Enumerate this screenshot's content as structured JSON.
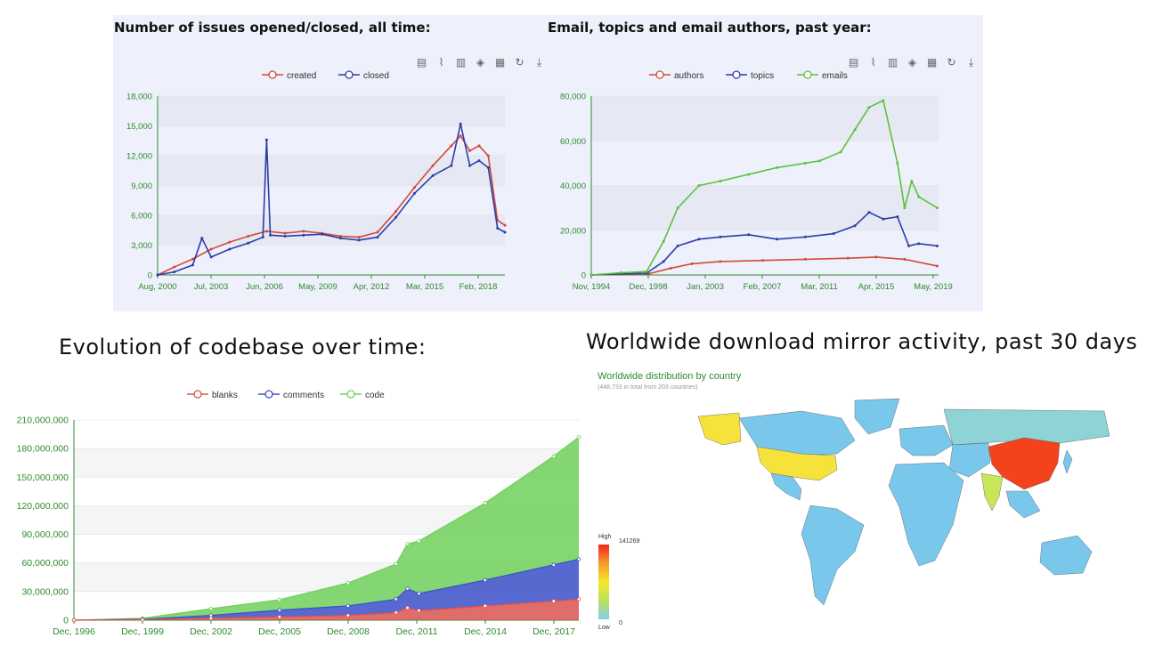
{
  "headings": {
    "issues": "Number of issues opened/closed, all time:",
    "email": "Email, topics and email authors, past year:",
    "codebase": "Evolution of codebase over time:",
    "mirror": "Worldwide download mirror activity, past 30 days"
  },
  "toolbar_icons": [
    "data-view-icon",
    "line-switch-icon",
    "bar-switch-icon",
    "stack-icon",
    "tiled-icon",
    "restore-icon",
    "download-icon"
  ],
  "map": {
    "title": "Worldwide distribution by country",
    "subtitle": "(448,733 in total from 203 countries)",
    "scale_high": "High",
    "scale_low": "Low",
    "scale_max": "141269",
    "scale_min": "0"
  },
  "chart_data": [
    {
      "type": "line",
      "title": "Number of issues opened/closed, all time:",
      "x_ticks": [
        "Aug, 2000",
        "Jul, 2003",
        "Jun, 2006",
        "May, 2009",
        "Apr, 2012",
        "Mar, 2015",
        "Feb, 2018"
      ],
      "ylim": [
        0,
        18000
      ],
      "y_ticks": [
        "0",
        "3,000",
        "6,000",
        "9,000",
        "12,000",
        "15,000",
        "18,000"
      ],
      "legend": "top-center",
      "colors": {
        "created": "#d14a3a",
        "closed": "#2b3ea8"
      },
      "series": [
        {
          "name": "created",
          "x": [
            2000.6,
            2001.5,
            2002.5,
            2003.5,
            2004.5,
            2005.5,
            2006.5,
            2007.5,
            2008.5,
            2009.5,
            2010.5,
            2011.5,
            2012.5,
            2013.5,
            2014.5,
            2015.5,
            2016.5,
            2017.0,
            2017.5,
            2018.0,
            2018.5,
            2019.0,
            2019.4
          ],
          "values": [
            0,
            800,
            1600,
            2600,
            3300,
            3900,
            4400,
            4200,
            4400,
            4200,
            3900,
            3800,
            4300,
            6400,
            8800,
            11000,
            13000,
            14000,
            12500,
            13000,
            12000,
            5500,
            5000
          ]
        },
        {
          "name": "closed",
          "x": [
            2000.6,
            2001.5,
            2002.5,
            2003.0,
            2003.5,
            2004.5,
            2005.5,
            2006.3,
            2006.5,
            2006.7,
            2007.5,
            2008.5,
            2009.5,
            2010.5,
            2011.5,
            2012.5,
            2013.5,
            2014.5,
            2015.5,
            2016.5,
            2017.0,
            2017.5,
            2018.0,
            2018.5,
            2019.0,
            2019.4
          ],
          "values": [
            0,
            300,
            1000,
            3700,
            1800,
            2600,
            3200,
            3800,
            13600,
            4000,
            3900,
            4000,
            4100,
            3700,
            3500,
            3800,
            5800,
            8200,
            10000,
            11000,
            15200,
            11000,
            11500,
            10800,
            4700,
            4300
          ]
        }
      ]
    },
    {
      "type": "line",
      "title": "Email, topics and email authors, past year:",
      "x_ticks": [
        "Nov, 1994",
        "Dec, 1998",
        "Jan, 2003",
        "Feb, 2007",
        "Mar, 2011",
        "Apr, 2015",
        "May, 2019"
      ],
      "ylim": [
        0,
        80000
      ],
      "y_ticks": [
        "0",
        "20,000",
        "40,000",
        "60,000",
        "80,000"
      ],
      "legend": "top-center",
      "colors": {
        "authors": "#d14a3a",
        "topics": "#2b3ea8",
        "emails": "#5cc13b"
      },
      "series": [
        {
          "name": "authors",
          "x": [
            1994.9,
            1997,
            1999,
            2000.5,
            2002,
            2004,
            2007,
            2010,
            2013,
            2015,
            2017,
            2019.3
          ],
          "values": [
            0,
            300,
            600,
            3000,
            5000,
            6000,
            6500,
            7000,
            7500,
            8000,
            7000,
            4000
          ]
        },
        {
          "name": "topics",
          "x": [
            1994.9,
            1997,
            1998.8,
            2000,
            2001,
            2002.5,
            2004,
            2006,
            2008,
            2010,
            2012,
            2013.5,
            2014.5,
            2015.5,
            2016.5,
            2017.3,
            2018,
            2019.3
          ],
          "values": [
            0,
            500,
            800,
            6000,
            13000,
            16000,
            17000,
            18000,
            16000,
            17000,
            18500,
            22000,
            28000,
            25000,
            26000,
            13000,
            14000,
            13000
          ]
        },
        {
          "name": "emails",
          "x": [
            1994.9,
            1997,
            1998.8,
            2000,
            2001,
            2002.5,
            2004,
            2006,
            2008,
            2010,
            2011,
            2012.5,
            2013.5,
            2014.5,
            2015.5,
            2016.5,
            2017.0,
            2017.5,
            2018.0,
            2019.3
          ],
          "values": [
            0,
            1000,
            1500,
            15000,
            30000,
            40000,
            42000,
            45000,
            48000,
            50000,
            51000,
            55000,
            65000,
            75000,
            78000,
            50000,
            30000,
            42000,
            35000,
            30000
          ]
        }
      ]
    },
    {
      "type": "area",
      "title": "Evolution of codebase over time:",
      "x_ticks": [
        "Dec, 1996",
        "Dec, 1999",
        "Dec, 2002",
        "Dec, 2005",
        "Dec, 2008",
        "Dec, 2011",
        "Dec, 2014",
        "Dec, 2017"
      ],
      "ylim": [
        0,
        210000000
      ],
      "y_ticks": [
        "0",
        "30,000,000",
        "60,000,000",
        "90,000,000",
        "120,000,000",
        "150,000,000",
        "180,000,000",
        "210,000,000"
      ],
      "legend": "top-center",
      "stacked": true,
      "colors": {
        "blanks": "#d9534f",
        "comments": "#3b50c8",
        "code": "#6fd05a"
      },
      "x": [
        1996.9,
        1999.9,
        2002.9,
        2005.9,
        2008.9,
        2011.0,
        2011.5,
        2012.0,
        2014.9,
        2017.9,
        2019.0
      ],
      "series": [
        {
          "name": "blanks",
          "values": [
            0,
            500000,
            2000000,
            3500000,
            5000000,
            8000000,
            13000000,
            10000000,
            15000000,
            20000000,
            22000000
          ]
        },
        {
          "name": "comments",
          "values": [
            0,
            500000,
            3000000,
            7000000,
            10000000,
            14000000,
            20000000,
            18000000,
            27000000,
            38000000,
            42000000
          ]
        },
        {
          "name": "code",
          "values": [
            0,
            1000000,
            7000000,
            11000000,
            24000000,
            37000000,
            47000000,
            55000000,
            81000000,
            114000000,
            128000000
          ]
        }
      ]
    }
  ],
  "map_countries": [
    {
      "name": "China",
      "level": "high",
      "color": "#f3421c"
    },
    {
      "name": "United States",
      "level": "upper-mid",
      "color": "#f7e23b"
    },
    {
      "name": "Alaska (United States)",
      "level": "upper-mid",
      "color": "#f7e23b"
    },
    {
      "name": "India",
      "level": "mid",
      "color": "#c8e65a"
    },
    {
      "name": "Russia",
      "level": "low-mid",
      "color": "#8ed3d6"
    },
    {
      "name": "Other countries",
      "level": "low",
      "color": "#79c8eb"
    }
  ]
}
